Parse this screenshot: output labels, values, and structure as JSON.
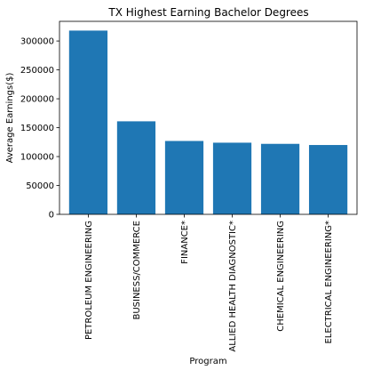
{
  "chart_data": {
    "type": "bar",
    "title": "TX Highest Earning Bachelor Degrees",
    "xlabel": "Program",
    "ylabel": "Average Earnings($)",
    "categories": [
      "PETROLEUM ENGINEERING",
      "BUSINESS/COMMERCE",
      "FINANCE*",
      "ALLIED HEALTH DIAGNOSTIC*",
      "CHEMICAL ENGINEERING",
      "ELECTRICAL ENGINEERING*"
    ],
    "values": [
      318000,
      161000,
      127000,
      124000,
      122000,
      120000
    ],
    "ylim": [
      0,
      334000
    ],
    "yticks": [
      0,
      50000,
      100000,
      150000,
      200000,
      250000,
      300000
    ],
    "grid": false,
    "bar_color": "#1f77b4"
  }
}
